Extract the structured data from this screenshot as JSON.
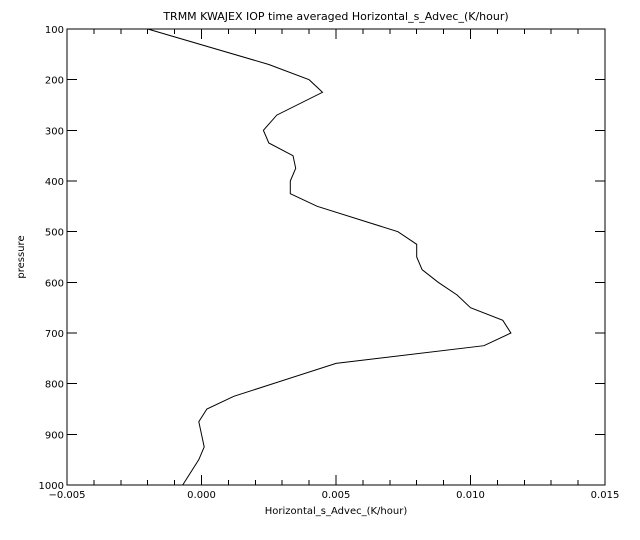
{
  "chart_data": {
    "type": "line",
    "title": "TRMM KWAJEX IOP time averaged Horizontal_s_Advec_(K/hour)",
    "xlabel": "Horizontal_s_Advec_(K/hour)",
    "ylabel": "pressure",
    "xlim": [
      -0.005,
      0.015
    ],
    "ylim": [
      1000,
      100
    ],
    "y_inverted": true,
    "grid": false,
    "x_ticks": [
      -0.005,
      0.0,
      0.005,
      0.01,
      0.015
    ],
    "x_tick_labels": [
      "−0.005",
      "0.000",
      "0.005",
      "0.010",
      "0.015"
    ],
    "y_ticks": [
      100,
      200,
      300,
      400,
      500,
      600,
      700,
      800,
      900,
      1000
    ],
    "y_tick_labels": [
      "100",
      "200",
      "300",
      "400",
      "500",
      "600",
      "700",
      "800",
      "900",
      "1000"
    ],
    "series": [
      {
        "x": [
          -0.002,
          0.0025,
          0.004,
          0.0045,
          0.0028,
          0.0023,
          0.0025,
          0.0034,
          0.0035,
          0.0033,
          0.0033,
          0.0043,
          0.0073,
          0.008,
          0.008,
          0.0082,
          0.0088,
          0.0095,
          0.01,
          0.0112,
          0.0115,
          0.0105,
          0.005,
          0.0012,
          0.0002,
          -0.0001,
          0.0,
          0.0001,
          -0.0001,
          -0.0007
        ],
        "y": [
          100,
          170,
          200,
          225,
          270,
          300,
          325,
          350,
          375,
          400,
          425,
          450,
          500,
          525,
          550,
          575,
          600,
          625,
          650,
          675,
          700,
          725,
          760,
          825,
          850,
          875,
          900,
          925,
          950,
          1000
        ]
      }
    ]
  },
  "style": {
    "line_color": "#000000",
    "background": "#ffffff"
  }
}
